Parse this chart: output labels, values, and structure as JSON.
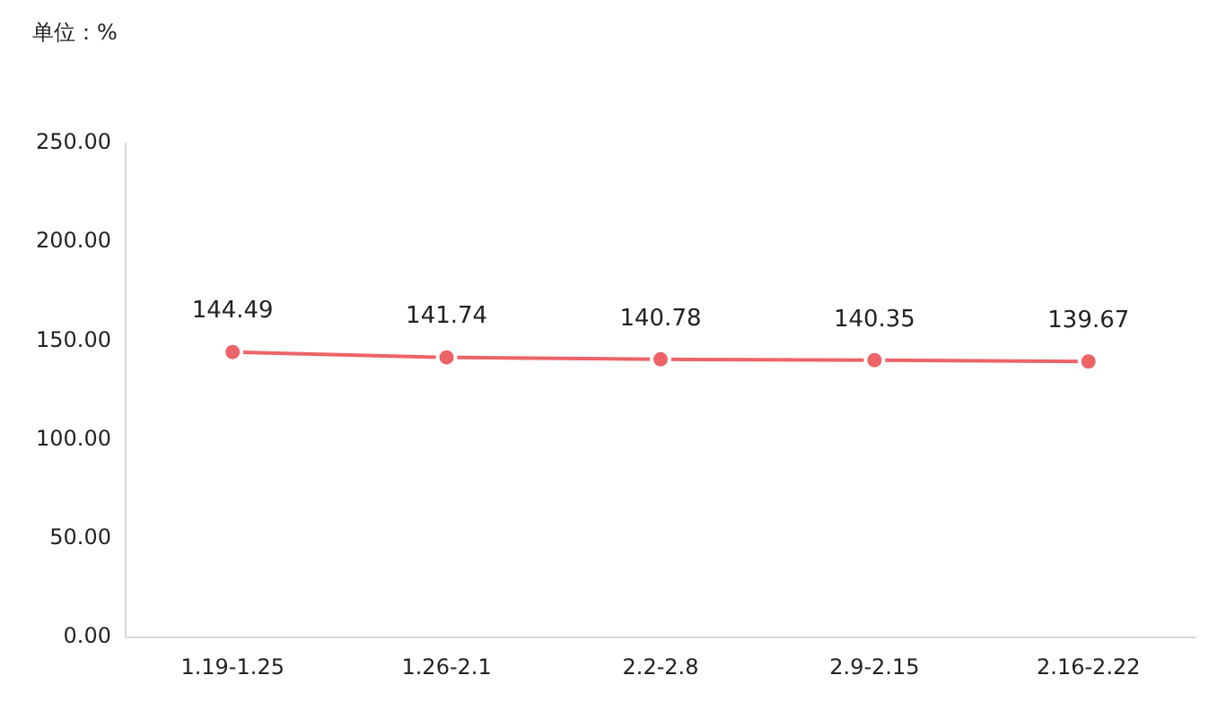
{
  "chart_data": {
    "type": "line",
    "ylabel": "单位：%",
    "categories": [
      "1.19-1.25",
      "1.26-2.1",
      "2.2-2.8",
      "2.9-2.15",
      "2.16-2.22"
    ],
    "series": [
      {
        "color": "#ec6468",
        "values": [
          144.49,
          141.74,
          140.78,
          140.35,
          139.67
        ]
      }
    ],
    "ylim": [
      0,
      250
    ],
    "yticks": [
      {
        "value": 0,
        "label": "0.00"
      },
      {
        "value": 50,
        "label": "50.00"
      },
      {
        "value": 100,
        "label": "100.00"
      },
      {
        "value": 150,
        "label": "150.00"
      },
      {
        "value": 200,
        "label": "200.00"
      },
      {
        "value": 250,
        "label": "250.00"
      }
    ],
    "grid": false,
    "legend": false,
    "marker": "circle",
    "line_style": "solid",
    "data_labels": true
  }
}
